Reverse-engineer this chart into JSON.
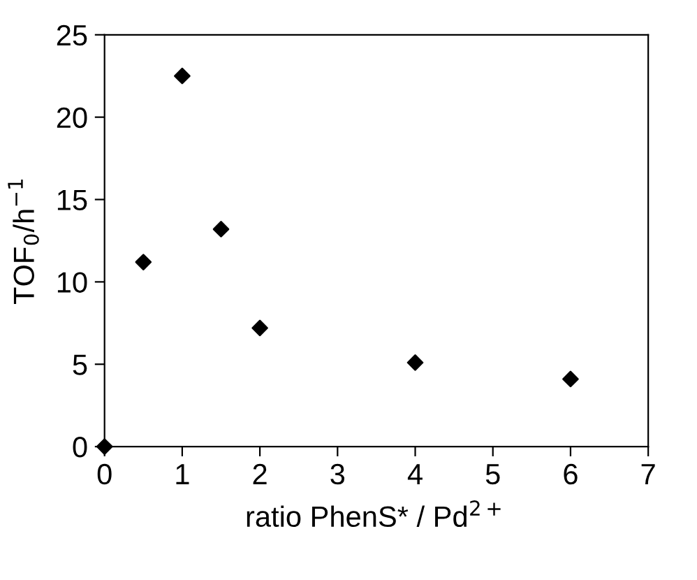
{
  "chart_data": {
    "type": "scatter",
    "xlabel": "ratio PhenS* / Pd$^{2+}$",
    "ylabel": "TOF$_{0}$/h$^{−1}$",
    "x": [
      0,
      0.5,
      1,
      1.5,
      2,
      4,
      6
    ],
    "values": [
      0,
      11.2,
      22.5,
      13.2,
      7.2,
      5.1,
      4.1
    ],
    "color": "#000000",
    "marker": "diamond",
    "xlim": [
      0,
      7
    ],
    "ylim": [
      0,
      25
    ],
    "xticks": [
      0,
      1,
      2,
      3,
      4,
      5,
      6,
      7
    ],
    "yticks": [
      0,
      5,
      10,
      15,
      20,
      25
    ],
    "grid": false
  }
}
